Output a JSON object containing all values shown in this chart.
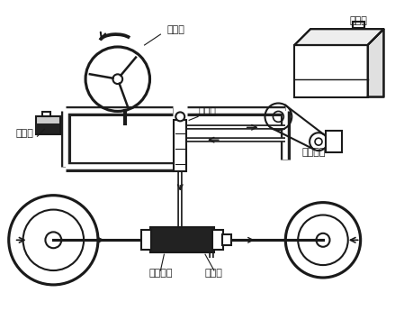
{
  "background_color": "#ffffff",
  "line_color": "#1a1a1a",
  "fill_dark": "#222222",
  "fill_gray": "#888888",
  "fill_light": "#cccccc",
  "labels": {
    "steering_wheel": "转向盘",
    "reservoir": "储油罐",
    "control_valve": "控制阀",
    "engine": "发动机",
    "power_pump": "助力油泵",
    "power_piston": "动力活塞",
    "power_cylinder": "动力缸"
  },
  "line_width": 1.5,
  "tube_outer_lw": 8,
  "tube_inner_lw": 4,
  "thin_outer_lw": 4,
  "thin_inner_lw": 1.5
}
